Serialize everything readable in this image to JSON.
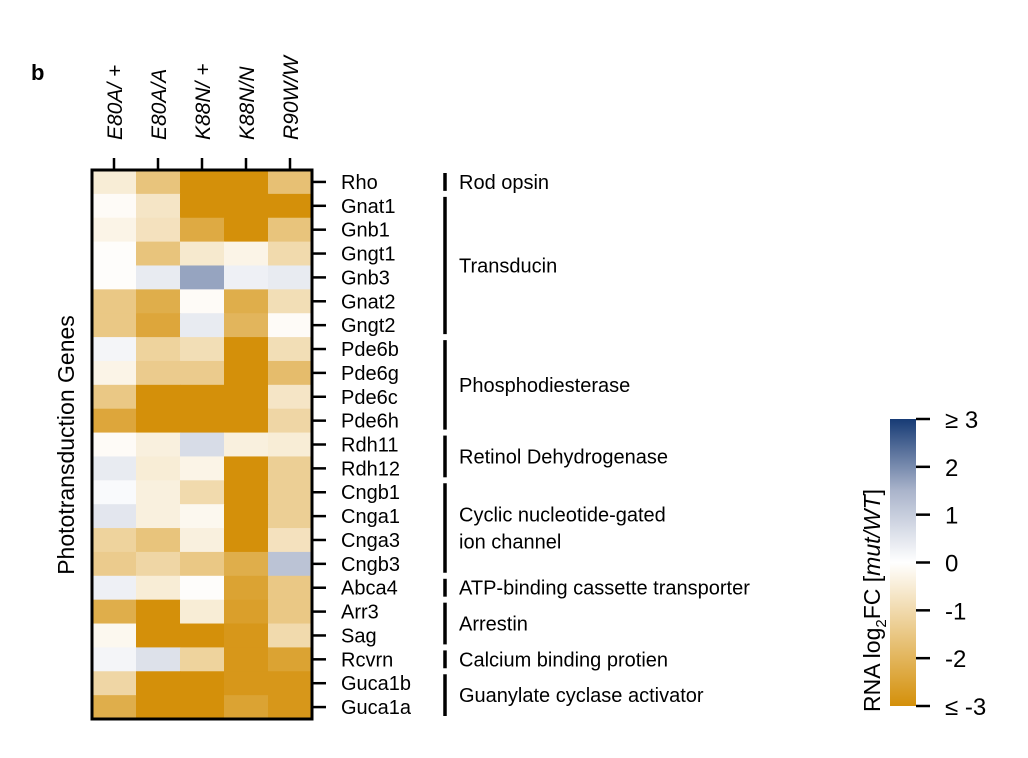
{
  "panel_label": "b",
  "chart_data": {
    "type": "heatmap",
    "ylabel": "Phototransduction Genes",
    "columns": [
      "E80A/ +",
      "E80A/A",
      "K88N/ +",
      "K88N/N",
      "R90W/W"
    ],
    "rows": [
      "Rho",
      "Gnat1",
      "Gnb1",
      "Gngt1",
      "Gnb3",
      "Gnat2",
      "Gngt2",
      "Pde6b",
      "Pde6g",
      "Pde6c",
      "Pde6h",
      "Rdh11",
      "Rdh12",
      "Cngb1",
      "Cnga1",
      "Cnga3",
      "Cngb3",
      "Abca4",
      "Arr3",
      "Sag",
      "Rcvrn",
      "Guca1b",
      "Guca1a"
    ],
    "values": [
      [
        -0.5,
        -1.6,
        -3.0,
        -3.0,
        -1.7
      ],
      [
        -0.1,
        -0.7,
        -3.0,
        -3.0,
        -3.0
      ],
      [
        -0.3,
        -0.8,
        -2.3,
        -3.0,
        -1.6
      ],
      [
        -0.05,
        -1.6,
        -0.6,
        -0.3,
        -1.0
      ],
      [
        -0.05,
        0.4,
        1.7,
        0.3,
        0.4
      ],
      [
        -1.5,
        -2.2,
        -0.1,
        -2.2,
        -0.9
      ],
      [
        -1.5,
        -2.4,
        0.4,
        -2.0,
        -0.1
      ],
      [
        0.2,
        -1.2,
        -0.9,
        -3.0,
        -0.9
      ],
      [
        -0.3,
        -1.4,
        -1.4,
        -3.0,
        -1.8
      ],
      [
        -1.5,
        -3.0,
        -3.0,
        -3.0,
        -0.7
      ],
      [
        -2.4,
        -3.0,
        -3.0,
        -3.0,
        -1.1
      ],
      [
        -0.1,
        -0.4,
        0.7,
        -0.4,
        -0.5
      ],
      [
        0.4,
        -0.5,
        -0.3,
        -3.0,
        -1.3
      ],
      [
        0.1,
        -0.4,
        -1.0,
        -3.0,
        -1.3
      ],
      [
        0.5,
        -0.4,
        -0.2,
        -3.0,
        -1.3
      ],
      [
        -1.2,
        -1.6,
        -0.4,
        -3.0,
        -0.8
      ],
      [
        -1.4,
        -1.1,
        -1.5,
        -2.2,
        1.2
      ],
      [
        0.3,
        -0.5,
        -0.05,
        -2.5,
        -1.5
      ],
      [
        -2.2,
        -3.0,
        -0.5,
        -2.6,
        -1.5
      ],
      [
        -0.2,
        -3.0,
        -3.0,
        -2.8,
        -1.0
      ],
      [
        0.2,
        0.6,
        -1.2,
        -2.8,
        -2.5
      ],
      [
        -1.1,
        -3.0,
        -3.0,
        -2.8,
        -2.8
      ],
      [
        -2.2,
        -3.0,
        -3.0,
        -2.5,
        -2.8
      ]
    ],
    "groups": [
      {
        "label": "Rod opsin",
        "start": 0,
        "end": 0
      },
      {
        "label": "Transducin",
        "start": 1,
        "end": 6
      },
      {
        "label": "Phosphodiesterase",
        "start": 7,
        "end": 10
      },
      {
        "label": "Retinol Dehydrogenase",
        "start": 11,
        "end": 12
      },
      {
        "label": "Cyclic nucleotide-gated\nion channel",
        "start": 13,
        "end": 16
      },
      {
        "label": "ATP-binding cassette transporter",
        "start": 17,
        "end": 17
      },
      {
        "label": "Arrestin",
        "start": 18,
        "end": 19
      },
      {
        "label": "Calcium binding protien",
        "start": 20,
        "end": 20
      },
      {
        "label": "Guanylate cyclase activator",
        "start": 21,
        "end": 22
      }
    ],
    "colorbar": {
      "label_parts": [
        "RNA log",
        "2",
        "FC [",
        "mut/WT",
        "]"
      ],
      "range": [
        -3,
        3
      ],
      "ticks": [
        3,
        2,
        1,
        0,
        -1,
        -2,
        -3
      ],
      "tick_labels": [
        "≥ 3",
        "2",
        "1",
        "0",
        "-1",
        "-2",
        "≤ -3"
      ]
    },
    "colors": {
      "low": "#d4900a",
      "mid": "#ffffff",
      "mid_high": "#aab4cb",
      "high": "#173b75"
    }
  }
}
